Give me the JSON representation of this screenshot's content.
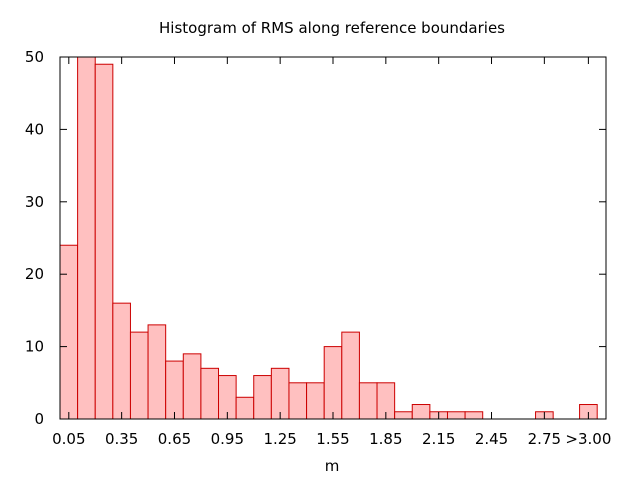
{
  "chart_data": {
    "type": "bar",
    "title": "Histogram of RMS along reference boundaries",
    "xlabel": "m",
    "ylabel": "",
    "ylim": [
      0,
      50
    ],
    "yticks": [
      0,
      10,
      20,
      30,
      40,
      50
    ],
    "bin_width": 0.1,
    "x_range": [
      0.0,
      3.1
    ],
    "xtick_values": [
      0.05,
      0.35,
      0.65,
      0.95,
      1.25,
      1.55,
      1.85,
      2.15,
      2.45,
      2.75,
      3.0
    ],
    "xtick_labels": [
      "0.05",
      "0.35",
      "0.65",
      "0.95",
      "1.25",
      "1.55",
      "1.85",
      "2.15",
      "2.45",
      "2.75",
      ">3.00"
    ],
    "categories": [
      "0.05",
      "0.15",
      "0.25",
      "0.35",
      "0.45",
      "0.55",
      "0.65",
      "0.75",
      "0.85",
      "0.95",
      "1.05",
      "1.15",
      "1.25",
      "1.35",
      "1.45",
      "1.55",
      "1.65",
      "1.75",
      "1.85",
      "1.95",
      "2.05",
      "2.15",
      "2.25",
      "2.35",
      "2.45",
      "2.55",
      "2.65",
      "2.75",
      "2.85",
      ">3.00"
    ],
    "bin_centers": [
      0.05,
      0.15,
      0.25,
      0.35,
      0.45,
      0.55,
      0.65,
      0.75,
      0.85,
      0.95,
      1.05,
      1.15,
      1.25,
      1.35,
      1.45,
      1.55,
      1.65,
      1.75,
      1.85,
      1.95,
      2.05,
      2.15,
      2.25,
      2.35,
      2.45,
      2.55,
      2.65,
      2.75,
      2.85,
      3.0
    ],
    "values": [
      24,
      50,
      49,
      16,
      12,
      13,
      8,
      9,
      7,
      6,
      3,
      6,
      7,
      5,
      5,
      10,
      12,
      5,
      5,
      1,
      2,
      1,
      1,
      1,
      0,
      0,
      0,
      1,
      0,
      2
    ],
    "bar_fill": "#ffc0c0",
    "bar_stroke": "#cc0000",
    "grid": false,
    "legend": false
  }
}
